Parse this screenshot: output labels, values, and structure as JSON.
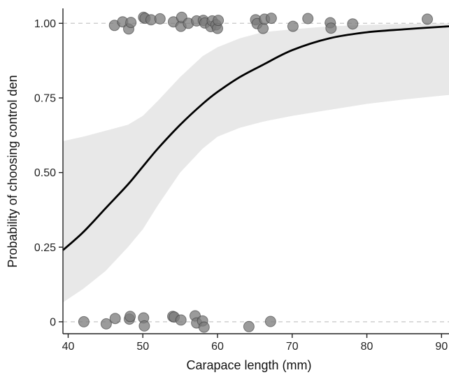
{
  "chart_data": {
    "type": "scatter",
    "title": "",
    "xlabel": "Carapace length (mm)",
    "ylabel": "Probability of choosing control den",
    "xlim": [
      39.3,
      91
    ],
    "ylim": [
      -0.04,
      1.05
    ],
    "x_ticks": [
      {
        "value": 40,
        "label": "40"
      },
      {
        "value": 50,
        "label": "50"
      },
      {
        "value": 60,
        "label": "60"
      },
      {
        "value": 70,
        "label": "70"
      },
      {
        "value": 80,
        "label": "80"
      },
      {
        "value": 90,
        "label": "90"
      }
    ],
    "y_ticks": [
      {
        "value": 0,
        "label": "0"
      },
      {
        "value": 0.25,
        "label": "0.25"
      },
      {
        "value": 0.5,
        "label": "0.50"
      },
      {
        "value": 0.75,
        "label": "0.75"
      },
      {
        "value": 1.0,
        "label": "1.00"
      }
    ],
    "reference_lines": [
      0,
      1
    ],
    "grid": false,
    "colors": {
      "points": "#7a7a7a",
      "point_stroke": "#3a3a3a",
      "fit_line": "#000000",
      "ribbon": "#e8e8e8",
      "reference_line": "#cccccc",
      "axis": "#222222"
    },
    "fit": {
      "x": [
        39.3,
        42,
        45,
        48,
        50,
        52,
        55,
        58,
        60,
        63,
        66,
        70,
        75,
        80,
        85,
        91
      ],
      "y": [
        0.24,
        0.3,
        0.38,
        0.46,
        0.52,
        0.58,
        0.66,
        0.73,
        0.77,
        0.82,
        0.86,
        0.91,
        0.95,
        0.97,
        0.98,
        0.99
      ],
      "lower": [
        0.065,
        0.11,
        0.17,
        0.25,
        0.31,
        0.39,
        0.5,
        0.58,
        0.62,
        0.65,
        0.67,
        0.69,
        0.71,
        0.73,
        0.745,
        0.76
      ],
      "upper": [
        0.605,
        0.62,
        0.64,
        0.66,
        0.69,
        0.74,
        0.82,
        0.89,
        0.92,
        0.95,
        0.97,
        0.98,
        0.99,
        0.995,
        0.998,
        1.0
      ]
    },
    "points": [
      {
        "x": 46.2,
        "y": 0.993
      },
      {
        "x": 47.3,
        "y": 1.005
      },
      {
        "x": 48.1,
        "y": 0.981
      },
      {
        "x": 48.4,
        "y": 1.003
      },
      {
        "x": 50.1,
        "y": 1.02
      },
      {
        "x": 50.3,
        "y": 1.017
      },
      {
        "x": 51.1,
        "y": 1.012
      },
      {
        "x": 52.3,
        "y": 1.015
      },
      {
        "x": 54.1,
        "y": 1.005
      },
      {
        "x": 55.1,
        "y": 0.99
      },
      {
        "x": 55.2,
        "y": 1.02
      },
      {
        "x": 56.1,
        "y": 1.0
      },
      {
        "x": 57.2,
        "y": 1.008
      },
      {
        "x": 58.1,
        "y": 1.01
      },
      {
        "x": 58.3,
        "y": 1.001
      },
      {
        "x": 59.1,
        "y": 0.989
      },
      {
        "x": 59.3,
        "y": 1.008
      },
      {
        "x": 59.8,
        "y": 0.995
      },
      {
        "x": 60.0,
        "y": 0.983
      },
      {
        "x": 60.1,
        "y": 1.01
      },
      {
        "x": 65.1,
        "y": 1.012
      },
      {
        "x": 65.3,
        "y": 0.999
      },
      {
        "x": 66.1,
        "y": 0.983
      },
      {
        "x": 66.3,
        "y": 1.014
      },
      {
        "x": 67.2,
        "y": 1.017
      },
      {
        "x": 70.1,
        "y": 0.99
      },
      {
        "x": 72.1,
        "y": 1.016
      },
      {
        "x": 75.1,
        "y": 1.002
      },
      {
        "x": 75.2,
        "y": 0.984
      },
      {
        "x": 78.1,
        "y": 0.998
      },
      {
        "x": 88.1,
        "y": 1.014
      },
      {
        "x": 42.1,
        "y": 0.0
      },
      {
        "x": 45.1,
        "y": -0.007
      },
      {
        "x": 46.3,
        "y": 0.011
      },
      {
        "x": 48.2,
        "y": 0.009
      },
      {
        "x": 48.3,
        "y": 0.018
      },
      {
        "x": 50.1,
        "y": 0.013
      },
      {
        "x": 50.2,
        "y": -0.014
      },
      {
        "x": 54.0,
        "y": 0.018
      },
      {
        "x": 54.2,
        "y": 0.016
      },
      {
        "x": 55.1,
        "y": 0.006
      },
      {
        "x": 57.0,
        "y": 0.02
      },
      {
        "x": 57.2,
        "y": -0.004
      },
      {
        "x": 58.0,
        "y": 0.003
      },
      {
        "x": 58.2,
        "y": -0.018
      },
      {
        "x": 64.2,
        "y": -0.016
      },
      {
        "x": 67.1,
        "y": 0.001
      }
    ]
  }
}
